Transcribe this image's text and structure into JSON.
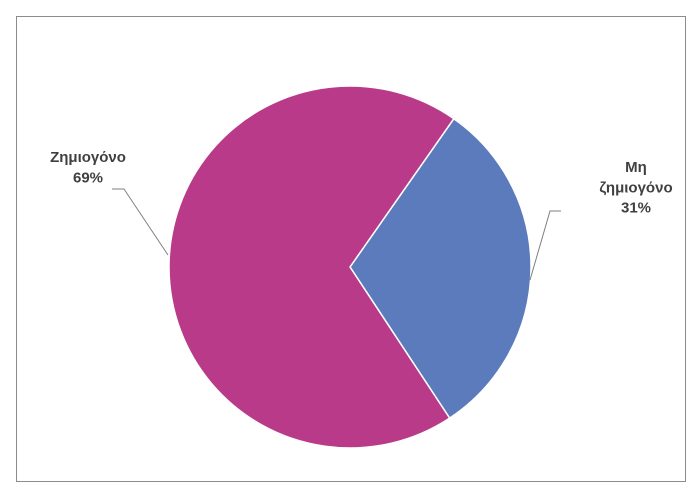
{
  "chart_data": {
    "type": "pie",
    "title": "",
    "legend": "none",
    "slices": [
      {
        "label_lines": [
          "Μη",
          "ζημιογόνο"
        ],
        "value": 31,
        "value_label": "31%",
        "color": "#5b7bbd"
      },
      {
        "label_lines": [
          "Ζημιογόνο"
        ],
        "value": 69,
        "value_label": "69%",
        "color": "#b83a88"
      }
    ]
  }
}
